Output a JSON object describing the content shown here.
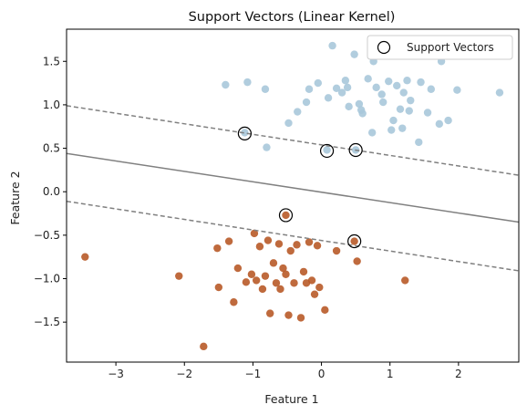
{
  "chart_data": {
    "type": "scatter",
    "title": "Support Vectors (Linear Kernel)",
    "xlabel": "Feature 1",
    "ylabel": "Feature 2",
    "xlim": [
      -3.72,
      2.88
    ],
    "ylim": [
      -1.96,
      1.87
    ],
    "x_ticks": [
      -3,
      -2,
      -1,
      0,
      1,
      2
    ],
    "x_tick_labels": [
      "−3",
      "−2",
      "−1",
      "0",
      "1",
      "2"
    ],
    "y_ticks": [
      -1.5,
      -1.0,
      -0.5,
      0.0,
      0.5,
      1.0,
      1.5
    ],
    "y_tick_labels": [
      "−1.5",
      "−1.0",
      "−0.5",
      "0.0",
      "0.5",
      "1.0",
      "1.5"
    ],
    "grid": false,
    "legend_position": "top-right",
    "colors": {
      "class_top": "#a8c8da",
      "class_bottom": "#b85a28",
      "boundary": "#808080"
    },
    "series": [
      {
        "color": "#a8c8da",
        "points": [
          [
            -1.4,
            1.23
          ],
          [
            -1.08,
            1.26
          ],
          [
            -1.12,
            0.68
          ],
          [
            -0.82,
            1.18
          ],
          [
            -0.8,
            0.51
          ],
          [
            -0.48,
            0.79
          ],
          [
            -0.22,
            1.03
          ],
          [
            -0.18,
            1.18
          ],
          [
            -0.05,
            1.25
          ],
          [
            0.08,
            0.48
          ],
          [
            0.1,
            1.08
          ],
          [
            0.16,
            1.68
          ],
          [
            0.22,
            1.19
          ],
          [
            0.3,
            1.14
          ],
          [
            0.38,
            1.2
          ],
          [
            0.4,
            0.98
          ],
          [
            0.48,
            1.58
          ],
          [
            0.5,
            0.48
          ],
          [
            0.55,
            1.01
          ],
          [
            0.6,
            0.9
          ],
          [
            0.68,
            1.3
          ],
          [
            0.74,
            0.68
          ],
          [
            0.76,
            1.5
          ],
          [
            0.8,
            1.2
          ],
          [
            0.88,
            1.12
          ],
          [
            0.9,
            1.03
          ],
          [
            0.98,
            1.27
          ],
          [
            1.05,
            0.82
          ],
          [
            1.1,
            1.22
          ],
          [
            1.18,
            0.73
          ],
          [
            1.2,
            1.14
          ],
          [
            1.28,
            0.93
          ],
          [
            1.3,
            1.05
          ],
          [
            1.42,
            0.57
          ],
          [
            1.45,
            1.26
          ],
          [
            1.55,
            0.91
          ],
          [
            1.6,
            1.18
          ],
          [
            1.72,
            0.78
          ],
          [
            1.75,
            1.5
          ],
          [
            1.85,
            0.82
          ],
          [
            1.98,
            1.17
          ],
          [
            2.6,
            1.14
          ],
          [
            0.58,
            0.94
          ],
          [
            1.02,
            0.71
          ],
          [
            1.25,
            1.28
          ],
          [
            0.35,
            1.28
          ],
          [
            -0.35,
            0.92
          ],
          [
            1.15,
            0.95
          ]
        ]
      },
      {
        "color": "#b85a28",
        "points": [
          [
            -3.45,
            -0.75
          ],
          [
            -2.08,
            -0.97
          ],
          [
            -1.72,
            -1.78
          ],
          [
            -1.52,
            -0.65
          ],
          [
            -1.5,
            -1.1
          ],
          [
            -1.35,
            -0.57
          ],
          [
            -1.28,
            -1.27
          ],
          [
            -1.22,
            -0.88
          ],
          [
            -1.1,
            -1.04
          ],
          [
            -1.02,
            -0.95
          ],
          [
            -0.98,
            -0.48
          ],
          [
            -0.95,
            -1.02
          ],
          [
            -0.9,
            -0.63
          ],
          [
            -0.86,
            -1.12
          ],
          [
            -0.82,
            -0.97
          ],
          [
            -0.78,
            -0.56
          ],
          [
            -0.75,
            -1.4
          ],
          [
            -0.7,
            -0.82
          ],
          [
            -0.66,
            -1.05
          ],
          [
            -0.62,
            -0.6
          ],
          [
            -0.6,
            -1.12
          ],
          [
            -0.56,
            -0.88
          ],
          [
            -0.52,
            -0.95
          ],
          [
            -0.48,
            -1.42
          ],
          [
            -0.45,
            -0.68
          ],
          [
            -0.4,
            -1.05
          ],
          [
            -0.36,
            -0.61
          ],
          [
            -0.3,
            -1.45
          ],
          [
            -0.26,
            -0.92
          ],
          [
            -0.22,
            -1.05
          ],
          [
            -0.18,
            -0.58
          ],
          [
            -0.14,
            -1.02
          ],
          [
            -0.1,
            -1.18
          ],
          [
            -0.06,
            -0.62
          ],
          [
            -0.03,
            -1.1
          ],
          [
            0.05,
            -1.36
          ],
          [
            0.22,
            -0.68
          ],
          [
            0.52,
            -0.8
          ],
          [
            1.22,
            -1.02
          ],
          [
            -0.52,
            -0.27
          ],
          [
            0.48,
            -0.57
          ]
        ]
      }
    ],
    "support_vectors": {
      "label": "Support Vectors",
      "points": [
        [
          -1.12,
          0.67
        ],
        [
          0.08,
          0.47
        ],
        [
          0.5,
          0.48
        ],
        [
          -0.52,
          -0.27
        ],
        [
          0.48,
          -0.57
        ]
      ]
    },
    "decision_lines": [
      {
        "style": "solid",
        "x": [
          -3.72,
          2.88
        ],
        "y": [
          0.44,
          -0.35
        ]
      },
      {
        "style": "dashed",
        "x": [
          -3.72,
          2.88
        ],
        "y": [
          0.99,
          0.19
        ]
      },
      {
        "style": "dashed",
        "x": [
          -3.72,
          2.88
        ],
        "y": [
          -0.11,
          -0.91
        ]
      }
    ]
  }
}
